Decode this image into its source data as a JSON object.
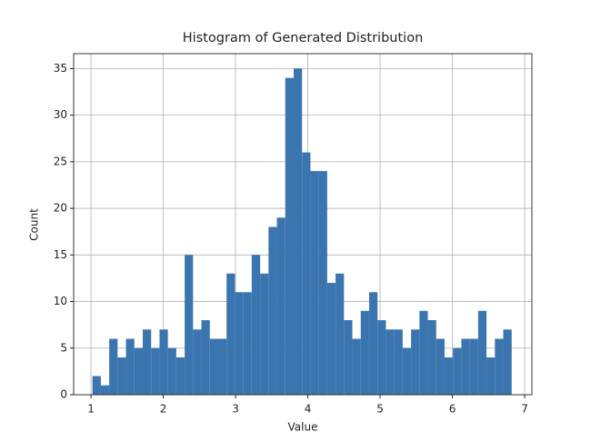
{
  "chart_data": {
    "type": "histogram",
    "title": "Histogram of Generated Distribution",
    "x_label": "Value",
    "y_label": "Count",
    "bins": [
      1.02,
      1.136,
      1.252,
      1.368,
      1.484,
      1.6,
      1.716,
      1.832,
      1.948,
      2.064,
      2.18,
      2.296,
      2.412,
      2.528,
      2.644,
      2.76,
      2.876,
      2.992,
      3.108,
      3.224,
      3.34,
      3.456,
      3.572,
      3.688,
      3.804,
      3.92,
      4.036,
      4.152,
      4.268,
      4.384,
      4.5,
      4.616,
      4.732,
      4.848,
      4.964,
      5.08,
      5.196,
      5.312,
      5.428,
      5.544,
      5.66,
      5.776,
      5.892,
      6.008,
      6.124,
      6.24,
      6.356,
      6.472,
      6.588,
      6.704,
      6.82
    ],
    "values": [
      2,
      1,
      6,
      4,
      6,
      5,
      7,
      5,
      7,
      5,
      4,
      15,
      7,
      8,
      6,
      6,
      13,
      11,
      11,
      15,
      13,
      18,
      19,
      34,
      35,
      26,
      24,
      24,
      12,
      13,
      8,
      6,
      9,
      11,
      8,
      7,
      7,
      5,
      7,
      9,
      8,
      6,
      4,
      5,
      6,
      6,
      9,
      4,
      6,
      7
    ],
    "color": "#3b75af",
    "xlim": [
      0.76,
      7.1
    ],
    "ylim": [
      0,
      36.6
    ],
    "xticks": [
      1,
      2,
      3,
      4,
      5,
      6,
      7
    ],
    "yticks": [
      0,
      5,
      10,
      15,
      20,
      25,
      30,
      35
    ],
    "grid": true
  }
}
